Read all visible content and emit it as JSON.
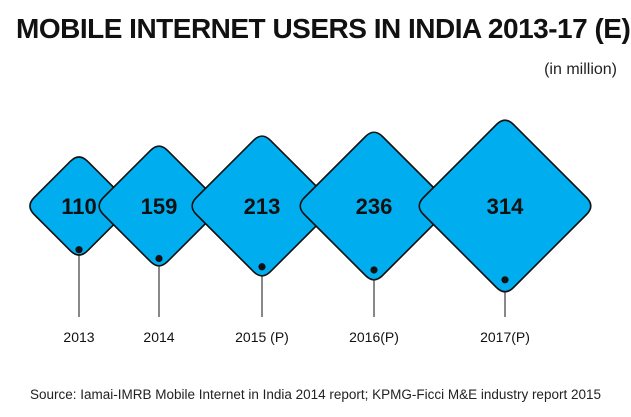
{
  "header": {
    "title": "MOBILE INTERNET USERS IN INDIA 2013-17 (E)",
    "unit": "(in million)"
  },
  "footer": {
    "source": "Source: Iamai-IMRB Mobile Internet in India 2014 report; KPMG-Ficci M&E industry report 2015"
  },
  "colors": {
    "fill": "#00AEEF",
    "stroke": "#111111",
    "text": "#111111"
  },
  "chart_data": {
    "type": "bubble",
    "title": "MOBILE INTERNET USERS IN INDIA 2013-17 (E)",
    "unit": "(in million)",
    "shape": "diamond",
    "categories": [
      "2013",
      "2014",
      "2015 (P)",
      "2016(P)",
      "2017(P)"
    ],
    "values": [
      110,
      159,
      213,
      236,
      314
    ],
    "value_labels": [
      "110",
      "159",
      "213",
      "236",
      "314"
    ]
  }
}
